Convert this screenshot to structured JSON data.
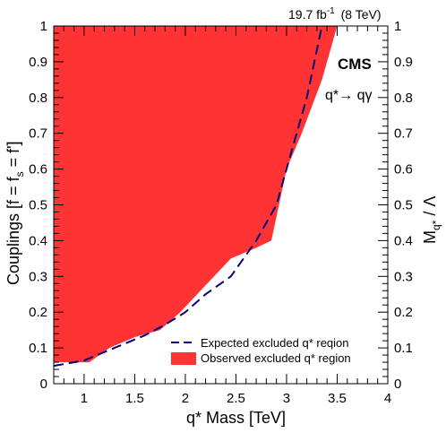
{
  "chart_data": {
    "type": "area",
    "lumi_label": "19.7 fb",
    "lumi_exponent": "-1",
    "energy_label": "(8 TeV)",
    "experiment": "CMS",
    "process": "q*→ qγ",
    "xlabel": "q* Mass [TeV]",
    "ylabel_main": "Couplings [f = f",
    "ylabel_sub": "s",
    "ylabel_end": " = f']",
    "y2label_main": "M",
    "y2label_sub": "q*",
    "y2label_end": " / Λ",
    "xlim": [
      0.7,
      4.0
    ],
    "ylim": [
      0.0,
      1.0
    ],
    "x_ticks": [
      "1",
      "1.5",
      "2",
      "2.5",
      "3",
      "3.5",
      "4"
    ],
    "y_ticks": [
      "0",
      "0.1",
      "0.2",
      "0.3",
      "0.4",
      "0.5",
      "0.6",
      "0.7",
      "0.8",
      "0.9",
      "1"
    ],
    "grid": false,
    "legend_position": "bottom-right",
    "series": [
      {
        "name": "Expected excluded q* reqion",
        "style": "dashed",
        "color": "#000080",
        "x": [
          0.7,
          1.0,
          1.3,
          1.6,
          1.8,
          2.0,
          2.2,
          2.45,
          2.7,
          2.9,
          3.05,
          3.2,
          3.35
        ],
        "y": [
          0.05,
          0.065,
          0.1,
          0.135,
          0.165,
          0.2,
          0.25,
          0.3,
          0.4,
          0.5,
          0.65,
          0.8,
          1.0
        ]
      },
      {
        "name": "Observed excluded q* region",
        "style": "filled",
        "color": "#ff3333",
        "x": [
          0.7,
          1.05,
          1.25,
          1.5,
          1.75,
          1.95,
          2.15,
          2.45,
          2.7,
          2.85,
          3.0,
          3.15,
          3.35,
          3.5
        ],
        "y": [
          0.06,
          0.06,
          0.1,
          0.13,
          0.15,
          0.2,
          0.26,
          0.35,
          0.38,
          0.4,
          0.6,
          0.7,
          0.85,
          1.0
        ]
      }
    ]
  }
}
